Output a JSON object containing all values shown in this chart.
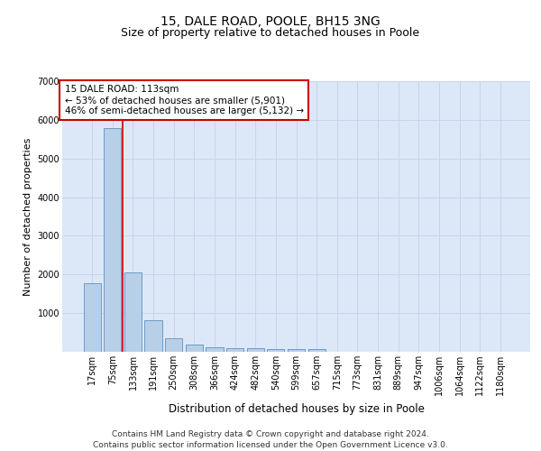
{
  "title1": "15, DALE ROAD, POOLE, BH15 3NG",
  "title2": "Size of property relative to detached houses in Poole",
  "xlabel": "Distribution of detached houses by size in Poole",
  "ylabel": "Number of detached properties",
  "categories": [
    "17sqm",
    "75sqm",
    "133sqm",
    "191sqm",
    "250sqm",
    "308sqm",
    "366sqm",
    "424sqm",
    "482sqm",
    "540sqm",
    "599sqm",
    "657sqm",
    "715sqm",
    "773sqm",
    "831sqm",
    "889sqm",
    "947sqm",
    "1006sqm",
    "1064sqm",
    "1122sqm",
    "1180sqm"
  ],
  "values": [
    1780,
    5780,
    2060,
    820,
    340,
    190,
    120,
    105,
    95,
    80,
    75,
    80,
    0,
    0,
    0,
    0,
    0,
    0,
    0,
    0,
    0
  ],
  "bar_color": "#b8cfe8",
  "bar_edge_color": "#6090c0",
  "vline_x": 1.5,
  "vline_color": "#cc0000",
  "annotation_line1": "15 DALE ROAD: 113sqm",
  "annotation_line2": "← 53% of detached houses are smaller (5,901)",
  "annotation_line3": "46% of semi-detached houses are larger (5,132) →",
  "annotation_box_color": "#ffffff",
  "annotation_box_edge_color": "#cc0000",
  "ylim": [
    0,
    7000
  ],
  "yticks": [
    0,
    1000,
    2000,
    3000,
    4000,
    5000,
    6000,
    7000
  ],
  "grid_color": "#c8d4e8",
  "background_color": "#dce8f8",
  "footer1": "Contains HM Land Registry data © Crown copyright and database right 2024.",
  "footer2": "Contains public sector information licensed under the Open Government Licence v3.0.",
  "title1_fontsize": 10,
  "title2_fontsize": 9,
  "xlabel_fontsize": 8.5,
  "ylabel_fontsize": 8,
  "tick_fontsize": 7,
  "annotation_fontsize": 7.5,
  "footer_fontsize": 6.5
}
